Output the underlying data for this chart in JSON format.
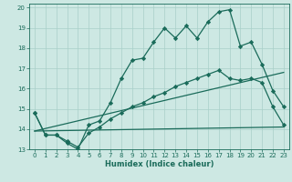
{
  "xlabel": "Humidex (Indice chaleur)",
  "xlim": [
    -0.5,
    23.5
  ],
  "ylim": [
    13,
    20.2
  ],
  "yticks": [
    13,
    14,
    15,
    16,
    17,
    18,
    19,
    20
  ],
  "xticks": [
    0,
    1,
    2,
    3,
    4,
    5,
    6,
    7,
    8,
    9,
    10,
    11,
    12,
    13,
    14,
    15,
    16,
    17,
    18,
    19,
    20,
    21,
    22,
    23
  ],
  "bg_color": "#cde8e3",
  "grid_color": "#a8cfc8",
  "line_color": "#1a6b5a",
  "line1_x": [
    0,
    1,
    2,
    3,
    4,
    5,
    6,
    7,
    8,
    9,
    10,
    11,
    12,
    13,
    14,
    15,
    16,
    17,
    18,
    19,
    20,
    21,
    22,
    23
  ],
  "line1_y": [
    14.8,
    13.7,
    13.7,
    13.3,
    13.0,
    14.2,
    14.4,
    15.3,
    16.5,
    17.4,
    17.5,
    18.3,
    19.0,
    18.5,
    19.1,
    18.5,
    19.3,
    19.8,
    19.9,
    18.1,
    18.3,
    17.2,
    15.9,
    15.1
  ],
  "line2_x": [
    0,
    23
  ],
  "line2_y": [
    13.9,
    16.8
  ],
  "line3_x": [
    0,
    23
  ],
  "line3_y": [
    13.9,
    14.1
  ],
  "line4_x": [
    0,
    1,
    2,
    3,
    4,
    5,
    6,
    7,
    8,
    9,
    10,
    11,
    12,
    13,
    14,
    15,
    16,
    17,
    18,
    19,
    20,
    21,
    22,
    23
  ],
  "line4_y": [
    14.8,
    13.7,
    13.7,
    13.4,
    13.1,
    13.8,
    14.1,
    14.5,
    14.8,
    15.1,
    15.3,
    15.6,
    15.8,
    16.1,
    16.3,
    16.5,
    16.7,
    16.9,
    16.5,
    16.4,
    16.5,
    16.3,
    15.1,
    14.2
  ]
}
